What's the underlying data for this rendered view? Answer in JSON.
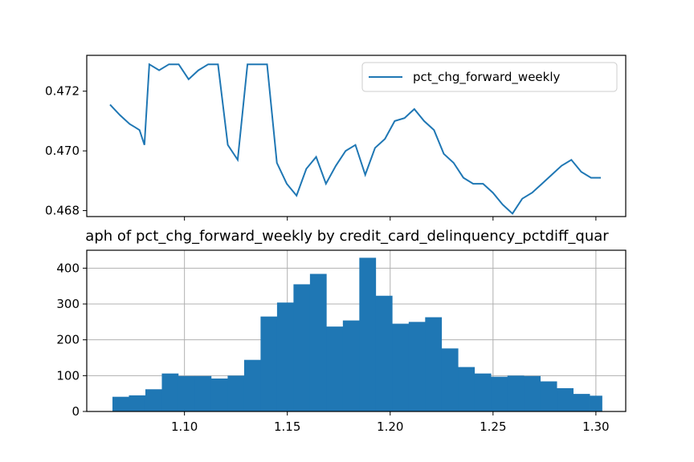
{
  "chart_data": [
    {
      "type": "line",
      "title": "",
      "xlabel": "",
      "ylabel": "",
      "ylim": [
        0.4678,
        0.4732
      ],
      "yticks": [
        "0.468",
        "0.470",
        "0.472"
      ],
      "xticks_labeled": false,
      "legend": {
        "location": "upper-right",
        "entries": [
          "pct_chg_forward_weekly"
        ]
      },
      "color": "#1f77b4",
      "series": [
        {
          "name": "pct_chg_forward_weekly",
          "x": [
            0,
            2,
            4,
            5,
            6,
            7,
            8,
            10,
            12,
            14,
            16,
            18,
            20,
            22,
            24,
            26,
            28,
            30,
            32,
            34,
            36,
            38,
            40,
            42,
            44,
            46,
            48,
            50,
            52,
            54,
            56,
            58,
            60,
            62,
            64,
            66,
            68,
            70,
            72,
            74,
            76,
            78,
            80,
            82,
            84,
            86,
            88,
            90,
            92,
            94,
            96,
            98,
            100
          ],
          "values": [
            0.47155,
            0.4712,
            0.4709,
            0.4708,
            0.4707,
            0.4702,
            0.4729,
            0.4727,
            0.4729,
            0.4729,
            0.4724,
            0.4727,
            0.4729,
            0.4729,
            0.4702,
            0.4697,
            0.4729,
            0.4729,
            0.4729,
            0.4696,
            0.4689,
            0.4685,
            0.4694,
            0.4698,
            0.4689,
            0.4695,
            0.47,
            0.4702,
            0.4692,
            0.4701,
            0.4704,
            0.471,
            0.4711,
            0.4714,
            0.471,
            0.4707,
            0.4699,
            0.4696,
            0.4691,
            0.4689,
            0.4689,
            0.4686,
            0.4682,
            0.4679,
            0.4684,
            0.4686,
            0.4689,
            0.4692,
            0.4695,
            0.4697,
            0.4693,
            0.4691,
            0.4691
          ]
        }
      ]
    },
    {
      "type": "bar",
      "title": "aph of pct_chg_forward_weekly by credit_card_delinquency_pctdiff_quar",
      "xlabel": "",
      "ylabel": "",
      "xlim": [
        1.0525,
        1.3145
      ],
      "ylim": [
        0,
        450
      ],
      "xticks": [
        "1.10",
        "1.15",
        "1.20",
        "1.25",
        "1.30"
      ],
      "yticks": [
        "0",
        "100",
        "200",
        "300",
        "400"
      ],
      "grid": true,
      "color": "#1f77b4",
      "bins": [
        {
          "x0": 1.065,
          "x1": 1.073,
          "count": 41
        },
        {
          "x0": 1.073,
          "x1": 1.081,
          "count": 45
        },
        {
          "x0": 1.081,
          "x1": 1.089,
          "count": 62
        },
        {
          "x0": 1.089,
          "x1": 1.097,
          "count": 106
        },
        {
          "x0": 1.097,
          "x1": 1.105,
          "count": 99
        },
        {
          "x0": 1.105,
          "x1": 1.113,
          "count": 99
        },
        {
          "x0": 1.113,
          "x1": 1.121,
          "count": 92
        },
        {
          "x0": 1.121,
          "x1": 1.129,
          "count": 100
        },
        {
          "x0": 1.129,
          "x1": 1.137,
          "count": 144
        },
        {
          "x0": 1.137,
          "x1": 1.145,
          "count": 265
        },
        {
          "x0": 1.145,
          "x1": 1.153,
          "count": 304
        },
        {
          "x0": 1.153,
          "x1": 1.161,
          "count": 355
        },
        {
          "x0": 1.161,
          "x1": 1.169,
          "count": 384
        },
        {
          "x0": 1.169,
          "x1": 1.177,
          "count": 237
        },
        {
          "x0": 1.177,
          "x1": 1.185,
          "count": 254
        },
        {
          "x0": 1.185,
          "x1": 1.193,
          "count": 429
        },
        {
          "x0": 1.193,
          "x1": 1.201,
          "count": 323
        },
        {
          "x0": 1.201,
          "x1": 1.209,
          "count": 245
        },
        {
          "x0": 1.209,
          "x1": 1.217,
          "count": 250
        },
        {
          "x0": 1.217,
          "x1": 1.225,
          "count": 263
        },
        {
          "x0": 1.225,
          "x1": 1.233,
          "count": 176
        },
        {
          "x0": 1.233,
          "x1": 1.241,
          "count": 124
        },
        {
          "x0": 1.241,
          "x1": 1.249,
          "count": 106
        },
        {
          "x0": 1.249,
          "x1": 1.257,
          "count": 97
        },
        {
          "x0": 1.257,
          "x1": 1.265,
          "count": 100
        },
        {
          "x0": 1.265,
          "x1": 1.273,
          "count": 99
        },
        {
          "x0": 1.273,
          "x1": 1.281,
          "count": 84
        },
        {
          "x0": 1.281,
          "x1": 1.289,
          "count": 65
        },
        {
          "x0": 1.289,
          "x1": 1.297,
          "count": 49
        },
        {
          "x0": 1.297,
          "x1": 1.303,
          "count": 44
        }
      ]
    }
  ]
}
